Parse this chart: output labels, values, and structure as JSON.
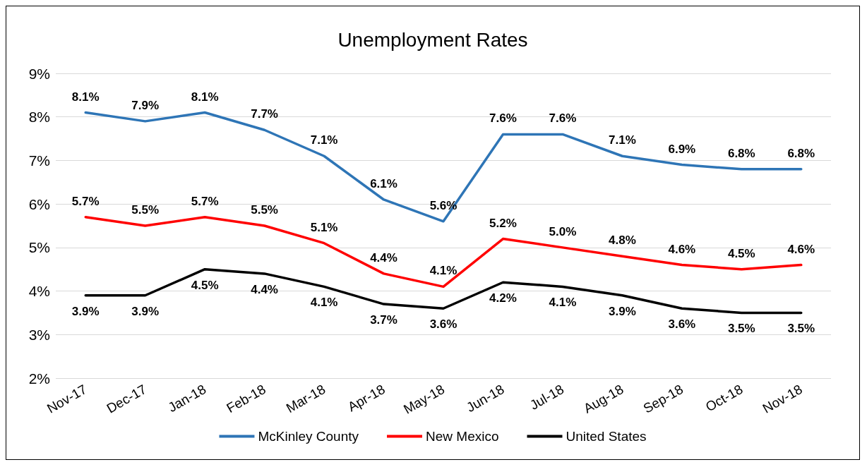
{
  "chart_data": {
    "type": "line",
    "title": "Unemployment Rates",
    "categories": [
      "Nov-17",
      "Dec-17",
      "Jan-18",
      "Feb-18",
      "Mar-18",
      "Apr-18",
      "May-18",
      "Jun-18",
      "Jul-18",
      "Aug-18",
      "Sep-18",
      "Oct-18",
      "Nov-18"
    ],
    "series": [
      {
        "name": "McKinley County",
        "color": "#2e75b6",
        "values": [
          8.1,
          7.9,
          8.1,
          7.7,
          7.1,
          6.1,
          5.6,
          7.6,
          7.6,
          7.1,
          6.9,
          6.8,
          6.8
        ],
        "value_labels": [
          "8.1%",
          "7.9%",
          "8.1%",
          "7.7%",
          "7.1%",
          "6.1%",
          "5.6%",
          "7.6%",
          "7.6%",
          "7.1%",
          "6.9%",
          "6.8%",
          "6.8%"
        ]
      },
      {
        "name": "New Mexico",
        "color": "#ff0000",
        "values": [
          5.7,
          5.5,
          5.7,
          5.5,
          5.1,
          4.4,
          4.1,
          5.2,
          5.0,
          4.8,
          4.6,
          4.5,
          4.6
        ],
        "value_labels": [
          "5.7%",
          "5.5%",
          "5.7%",
          "5.5%",
          "5.1%",
          "4.4%",
          "4.1%",
          "5.2%",
          "5.0%",
          "4.8%",
          "4.6%",
          "4.5%",
          "4.6%"
        ]
      },
      {
        "name": "United States",
        "color": "#000000",
        "values": [
          3.9,
          3.9,
          4.5,
          4.4,
          4.1,
          3.7,
          3.6,
          4.2,
          4.1,
          3.9,
          3.6,
          3.5,
          3.5
        ],
        "value_labels": [
          "3.9%",
          "3.9%",
          "4.5%",
          "4.4%",
          "4.1%",
          "3.7%",
          "3.6%",
          "4.2%",
          "4.1%",
          "3.9%",
          "3.6%",
          "3.5%",
          "3.5%"
        ]
      }
    ],
    "ylim": [
      2,
      9
    ],
    "yticks": [
      {
        "value": 2,
        "label": "2%"
      },
      {
        "value": 3,
        "label": "3%"
      },
      {
        "value": 4,
        "label": "4%"
      },
      {
        "value": 5,
        "label": "5%"
      },
      {
        "value": 6,
        "label": "6%"
      },
      {
        "value": 7,
        "label": "7%"
      },
      {
        "value": 8,
        "label": "8%"
      },
      {
        "value": 9,
        "label": "9%"
      }
    ],
    "grid": "y",
    "legend": "bottom",
    "marker": "none",
    "line_style": "solid"
  }
}
